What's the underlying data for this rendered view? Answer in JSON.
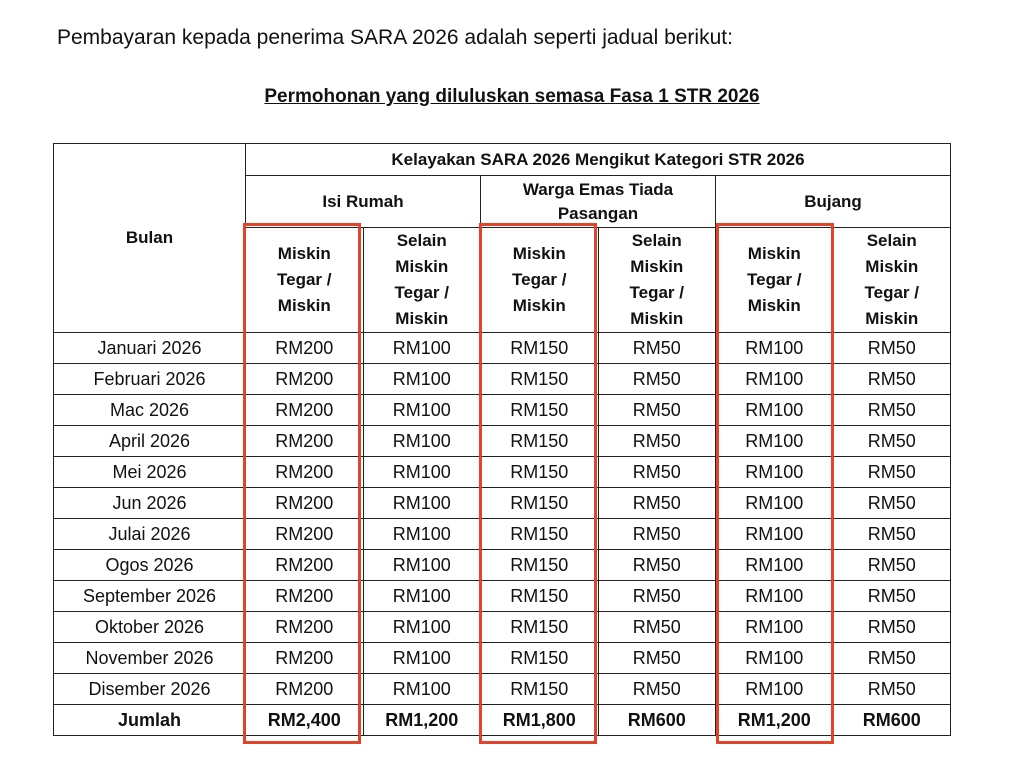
{
  "intro": "Pembayaran kepada penerima SARA 2026 adalah seperti jadual berikut:",
  "subtitle": "Permohonan yang diluluskan semasa Fasa 1 STR 2026",
  "table": {
    "month_header": "Bulan",
    "group_header": "Kelayakan SARA 2026 Mengikut Kategori STR 2026",
    "categories": [
      "Isi Rumah",
      "Warga Emas Tiada Pasangan",
      "Bujang"
    ],
    "subheaders": [
      "Miskin Tegar / Miskin",
      "Selain Miskin Tegar / Miskin",
      "Miskin Tegar / Miskin",
      "Selain Miskin Tegar / Miskin",
      "Miskin Tegar / Miskin",
      "Selain Miskin Tegar / Miskin"
    ],
    "rows": [
      [
        "Januari 2026",
        "RM200",
        "RM100",
        "RM150",
        "RM50",
        "RM100",
        "RM50"
      ],
      [
        "Februari 2026",
        "RM200",
        "RM100",
        "RM150",
        "RM50",
        "RM100",
        "RM50"
      ],
      [
        "Mac 2026",
        "RM200",
        "RM100",
        "RM150",
        "RM50",
        "RM100",
        "RM50"
      ],
      [
        "April 2026",
        "RM200",
        "RM100",
        "RM150",
        "RM50",
        "RM100",
        "RM50"
      ],
      [
        "Mei 2026",
        "RM200",
        "RM100",
        "RM150",
        "RM50",
        "RM100",
        "RM50"
      ],
      [
        "Jun 2026",
        "RM200",
        "RM100",
        "RM150",
        "RM50",
        "RM100",
        "RM50"
      ],
      [
        "Julai 2026",
        "RM200",
        "RM100",
        "RM150",
        "RM50",
        "RM100",
        "RM50"
      ],
      [
        "Ogos 2026",
        "RM200",
        "RM100",
        "RM150",
        "RM50",
        "RM100",
        "RM50"
      ],
      [
        "September 2026",
        "RM200",
        "RM100",
        "RM150",
        "RM50",
        "RM100",
        "RM50"
      ],
      [
        "Oktober 2026",
        "RM200",
        "RM100",
        "RM150",
        "RM50",
        "RM100",
        "RM50"
      ],
      [
        "November 2026",
        "RM200",
        "RM100",
        "RM150",
        "RM50",
        "RM100",
        "RM50"
      ],
      [
        "Disember 2026",
        "RM200",
        "RM100",
        "RM150",
        "RM50",
        "RM100",
        "RM50"
      ]
    ],
    "total": [
      "Jumlah",
      "RM2,400",
      "RM1,200",
      "RM1,800",
      "RM600",
      "RM1,200",
      "RM600"
    ]
  }
}
